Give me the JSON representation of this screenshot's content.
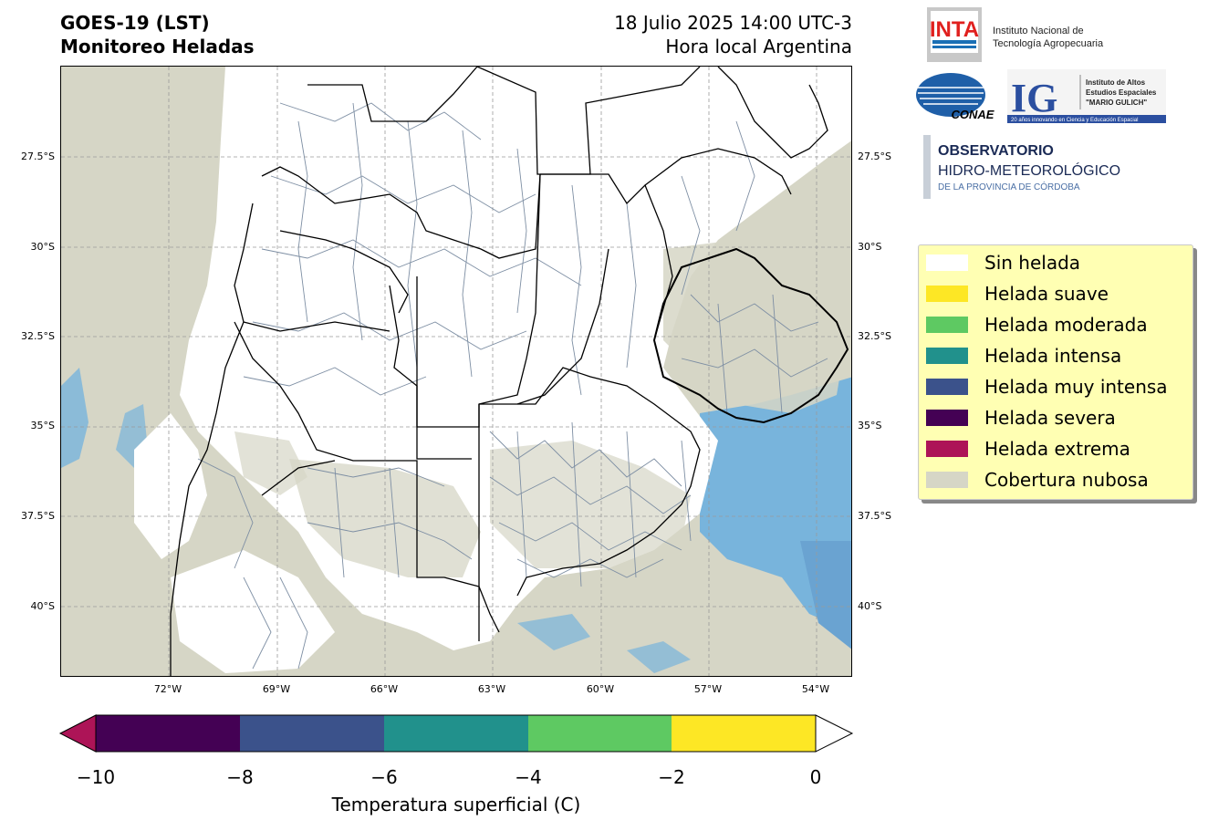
{
  "header": {
    "title_line1": "GOES-19 (LST)",
    "title_line2": "Monitoreo Heladas",
    "date_line": "18 Julio 2025 14:00 UTC-3",
    "time_note": "Hora local Argentina"
  },
  "map": {
    "lat_ticks": [
      "27.5°S",
      "30°S",
      "32.5°S",
      "35°S",
      "37.5°S",
      "40°S"
    ],
    "lon_ticks": [
      "72°W",
      "69°W",
      "66°W",
      "63°W",
      "60°W",
      "57°W",
      "54°W"
    ],
    "lon_range": [
      -74.0,
      -52.0
    ],
    "lat_range": [
      -42.0,
      -25.0
    ],
    "gridlines": true,
    "colors": {
      "cloud": "#d6d6c6",
      "no_frost": "#ffffff",
      "ocean_blue": "#78b4dc",
      "ocean_blue_dark": "#6aa3d1",
      "boundary": "#000000",
      "department_line": "#7d8ea3"
    }
  },
  "logos": {
    "inta_mark": "INTA",
    "inta_name_line1": "Instituto Nacional de",
    "inta_name_line2": "Tecnología Agropecuaria",
    "conae_mark": "CONAE",
    "ig_mark": "IG",
    "ig_line1": "Instituto de Altos",
    "ig_line2": "Estudios Espaciales",
    "ig_line3": "\"MARIO GULICH\"",
    "ig_tagline": "20 años innovando en Ciencia y Educación Espacial",
    "obs_line1": "OBSERVATORIO",
    "obs_line2": "HIDRO-METEOROLÓGICO",
    "obs_line3": "DE LA PROVINCIA DE CÓRDOBA"
  },
  "legend": {
    "items": [
      {
        "label": "Sin helada",
        "color": "#ffffff"
      },
      {
        "label": "Helada suave",
        "color": "#fde725"
      },
      {
        "label": "Helada moderada",
        "color": "#5ec962"
      },
      {
        "label": "Helada intensa",
        "color": "#21918c"
      },
      {
        "label": "Helada muy intensa",
        "color": "#3b528b"
      },
      {
        "label": "Helada severa",
        "color": "#440154"
      },
      {
        "label": "Helada extrema",
        "color": "#ad1457"
      },
      {
        "label": "Cobertura nubosa",
        "color": "#d6d6c6"
      }
    ]
  },
  "colorbar": {
    "title": "Temperatura superficial (C)",
    "ticks": [
      "−10",
      "−8",
      "−6",
      "−4",
      "−2",
      "0"
    ],
    "segments": [
      "#440154",
      "#3b528b",
      "#21918c",
      "#5ec962",
      "#fde725"
    ],
    "under_color": "#ad1457",
    "over_color": "#ffffff"
  }
}
